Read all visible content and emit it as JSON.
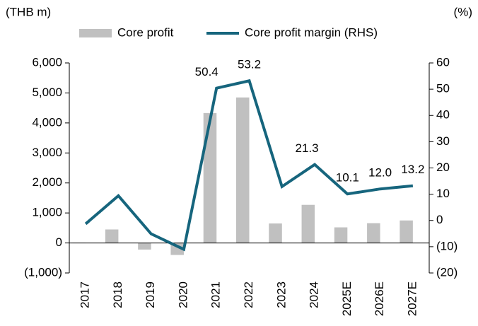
{
  "chart_data": {
    "type": "bar_line",
    "y_label": "(THB m)",
    "y2_label": "(%)",
    "categories": [
      "2017",
      "2018",
      "2019",
      "2020",
      "2021",
      "2022",
      "2023",
      "2024",
      "2025E",
      "2026E",
      "2027E"
    ],
    "series": [
      {
        "name": "Core profit",
        "type": "bar",
        "color": "#c0c0c0",
        "values": [
          10,
          450,
          -220,
          -400,
          4330,
          4850,
          650,
          1270,
          520,
          660,
          750
        ]
      },
      {
        "name": "Core profit margin (RHS)",
        "type": "line",
        "axis": "y2",
        "color": "#16657d",
        "values": [
          -1.3,
          9.4,
          -5.1,
          -11.0,
          50.4,
          53.2,
          12.9,
          21.3,
          10.1,
          12.0,
          13.2
        ],
        "value_labels": [
          null,
          null,
          null,
          null,
          "50.4",
          "53.2",
          null,
          "21.3",
          "10.1",
          "12.0",
          "13.2"
        ]
      }
    ],
    "ylim": [
      -1000,
      6000
    ],
    "yticks": [
      {
        "value": -1000,
        "label": "(1,000)"
      },
      0,
      {
        "value": 1000,
        "label": "1,000"
      },
      {
        "value": 2000,
        "label": "2,000"
      },
      {
        "value": 3000,
        "label": "3,000"
      },
      {
        "value": 4000,
        "label": "4,000"
      },
      {
        "value": 5000,
        "label": "5,000"
      },
      {
        "value": 6000,
        "label": "6,000"
      }
    ],
    "y2lim": [
      -20,
      60
    ],
    "y2ticks": [
      {
        "value": -20,
        "label": "(20)"
      },
      {
        "value": -10,
        "label": "(10)"
      },
      0,
      10,
      20,
      30,
      40,
      50,
      60
    ],
    "legend": "top"
  }
}
